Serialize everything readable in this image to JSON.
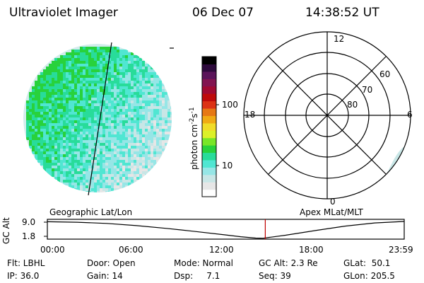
{
  "header": {
    "instrument": "Ultraviolet Imager",
    "date": "06 Dec 07",
    "time": "14:38:52 UT"
  },
  "image_panel": {
    "label": "Geographic Lat/Lon",
    "colors": [
      "#ffffff",
      "#e6e6e6",
      "#c8e6e6",
      "#96e6e6",
      "#50e6d2",
      "#28dc9a",
      "#28d23c",
      "#78e628",
      "#dcf028",
      "#f0dc28",
      "#f0aa14",
      "#e67814",
      "#dc3214",
      "#be0a0a",
      "#a00a32",
      "#821450",
      "#5a145a",
      "#2d0a3c",
      "#000000"
    ]
  },
  "color_bar": {
    "unit_label": "photon cm",
    "unit_sup1": "-2",
    "unit_mid": "s",
    "unit_sup2": "-1",
    "ticks": [
      "10",
      "100"
    ]
  },
  "polar_panel": {
    "label": "Apex MLat/MLT",
    "mlt_labels": [
      "12",
      "18",
      "6",
      "0"
    ],
    "mlat_labels": [
      "60",
      "70",
      "80"
    ]
  },
  "chart_data": {
    "type": "line",
    "ylabel": "GC Alt",
    "yticks": [
      "9.0",
      "1.8"
    ],
    "xticks": [
      "00:00",
      "06:00",
      "12:00",
      "18:00",
      "23:59"
    ],
    "ylim": [
      1.8,
      9.0
    ],
    "xlim_hours": [
      0,
      23.983
    ],
    "x": [
      0,
      2,
      4,
      6,
      8,
      10,
      12,
      13,
      14,
      14.5,
      15,
      16,
      18,
      20,
      22,
      23.983
    ],
    "values": [
      8.6,
      8.4,
      7.9,
      7.0,
      5.9,
      4.6,
      3.2,
      2.5,
      1.95,
      1.9,
      2.3,
      3.1,
      5.0,
      6.8,
      8.1,
      8.7
    ],
    "current_time_hours": 14.648
  },
  "info": {
    "flt": "Flt: LBHL",
    "ip": "IP: 36.0",
    "door": "Door: Open",
    "gain": "Gain: 14",
    "mode": "Mode: Normal",
    "dsp": "Dsp:     7.1",
    "gcalt": "GC Alt: 2.3 Re",
    "seq": "Seq: 39",
    "glat": "GLat:  50.1",
    "glon": "GLon: 205.5"
  }
}
